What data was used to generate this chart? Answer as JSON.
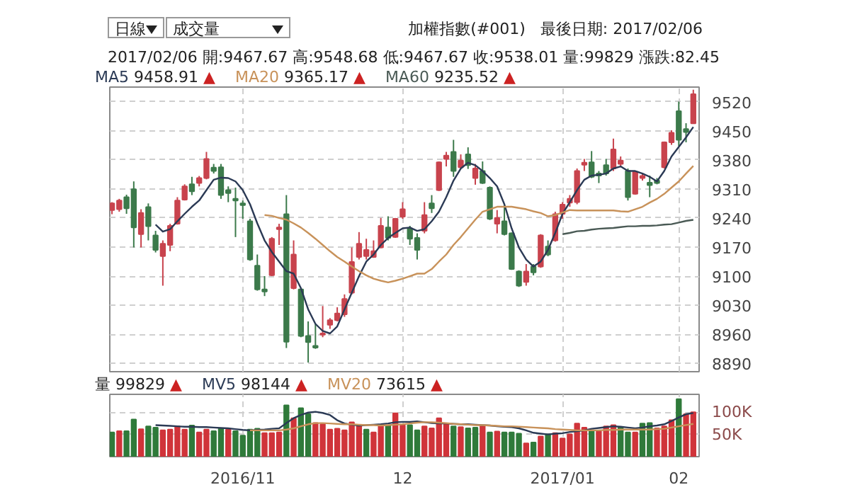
{
  "chart_data": [
    {
      "type": "candlestick",
      "title": "加權指數(#001)   最後日期: 2017/02/06",
      "subtitle": "2017/02/06 開:9467.67 高:9548.68 低:9467.67 收:9538.01 量:99829 漲跌:82.45",
      "annotations": [
        "日線",
        "成交量",
        "▲",
        "9458.91",
        "9365.17",
        "9235.52"
      ],
      "categories": [
        null,
        null,
        null,
        null,
        null,
        null,
        null,
        null,
        null,
        null,
        null,
        null,
        null,
        null,
        null,
        null,
        null,
        null,
        "2016/11",
        null,
        null,
        null,
        null,
        null,
        null,
        null,
        null,
        null,
        null,
        null,
        null,
        null,
        null,
        null,
        null,
        null,
        null,
        null,
        null,
        null,
        "12",
        null,
        null,
        null,
        null,
        null,
        null,
        null,
        null,
        null,
        null,
        null,
        null,
        null,
        null,
        null,
        null,
        null,
        null,
        null,
        null,
        null,
        "2017/01",
        null,
        null,
        null,
        null,
        null,
        null,
        null,
        null,
        null,
        null,
        null,
        null,
        null,
        null,
        null,
        "02",
        null,
        null
      ],
      "ohlc": [
        [
          9259,
          9278,
          9249,
          9275
        ],
        [
          9261,
          9286,
          9255,
          9282
        ],
        [
          9290,
          9296,
          9250,
          9263
        ],
        [
          9309,
          9328,
          9169,
          9217
        ],
        [
          9201,
          9261,
          9169,
          9252
        ],
        [
          9266,
          9275,
          9186,
          9220
        ],
        [
          9198,
          9209,
          9157,
          9163
        ],
        [
          9148,
          9186,
          9077,
          9178
        ],
        [
          9175,
          9226,
          9160,
          9221
        ],
        [
          9226,
          9290,
          9224,
          9282
        ],
        [
          9284,
          9321,
          9282,
          9316
        ],
        [
          9321,
          9339,
          9295,
          9304
        ],
        [
          9324,
          9341,
          9316,
          9336
        ],
        [
          9336,
          9399,
          9333,
          9382
        ],
        [
          9361,
          9370,
          9347,
          9353
        ],
        [
          9362,
          9370,
          9286,
          9295
        ],
        [
          9307,
          9316,
          9278,
          9300
        ],
        [
          9286,
          9313,
          9194,
          9282
        ],
        [
          9275,
          9282,
          9238,
          9271
        ],
        [
          9232,
          9238,
          9137,
          9140
        ],
        [
          9125,
          9152,
          9065,
          9068
        ],
        [
          9068,
          9100,
          9052,
          9063
        ],
        [
          9102,
          9194,
          9100,
          9190
        ],
        [
          9213,
          9226,
          9175,
          9217
        ],
        [
          9249,
          9295,
          8927,
          8942
        ],
        [
          9071,
          9186,
          9068,
          9152
        ],
        [
          9068,
          9068,
          8953,
          8956
        ],
        [
          8956,
          8991,
          8892,
          8941
        ],
        [
          8932,
          8985,
          8925,
          8928
        ],
        [
          8959,
          9028,
          8953,
          8962
        ],
        [
          8983,
          8999,
          8973,
          8994
        ],
        [
          8994,
          9025,
          8991,
          9010
        ],
        [
          9008,
          9056,
          9002,
          9045
        ],
        [
          9060,
          9169,
          9056,
          9134
        ],
        [
          9146,
          9206,
          9140,
          9178
        ],
        [
          9148,
          9190,
          9140,
          9163
        ],
        [
          9146,
          9186,
          9144,
          9160
        ],
        [
          9169,
          9240,
          9167,
          9221
        ],
        [
          9217,
          9244,
          9186,
          9192
        ],
        [
          9194,
          9240,
          9192,
          9238
        ],
        [
          9243,
          9278,
          9238,
          9261
        ],
        [
          9215,
          9221,
          9175,
          9190
        ],
        [
          9192,
          9203,
          9140,
          9163
        ],
        [
          9209,
          9278,
          9203,
          9247
        ],
        [
          9275,
          9295,
          9252,
          9263
        ],
        [
          9307,
          9376,
          9305,
          9374
        ],
        [
          9382,
          9399,
          9364,
          9390
        ],
        [
          9399,
          9428,
          9339,
          9353
        ],
        [
          9362,
          9393,
          9359,
          9378
        ],
        [
          9393,
          9410,
          9358,
          9367
        ],
        [
          9336,
          9370,
          9320,
          9359
        ],
        [
          9353,
          9376,
          9322,
          9324
        ],
        [
          9313,
          9316,
          9235,
          9238
        ],
        [
          9226,
          9259,
          9203,
          9240
        ],
        [
          9232,
          9272,
          9198,
          9201
        ],
        [
          9203,
          9205,
          9115,
          9117
        ],
        [
          9111,
          9114,
          9074,
          9077
        ],
        [
          9086,
          9129,
          9077,
          9111
        ],
        [
          9123,
          9129,
          9102,
          9109
        ],
        [
          9123,
          9201,
          9120,
          9198
        ],
        [
          9171,
          9186,
          9148,
          9152
        ],
        [
          9186,
          9255,
          9183,
          9249
        ],
        [
          9250,
          9278,
          9238,
          9272
        ],
        [
          9277,
          9295,
          9267,
          9286
        ],
        [
          9278,
          9359,
          9273,
          9353
        ],
        [
          9368,
          9382,
          9353,
          9373
        ],
        [
          9374,
          9401,
          9336,
          9339
        ],
        [
          9347,
          9353,
          9324,
          9342
        ],
        [
          9367,
          9382,
          9342,
          9347
        ],
        [
          9359,
          9431,
          9353,
          9405
        ],
        [
          9370,
          9388,
          9362,
          9378
        ],
        [
          9353,
          9359,
          9282,
          9290
        ],
        [
          9298,
          9353,
          9296,
          9351
        ],
        [
          9336,
          9347,
          9330,
          9341
        ],
        [
          9325,
          9342,
          9290,
          9319
        ],
        [
          9330,
          9336,
          9321,
          9324
        ],
        [
          9362,
          9424,
          9359,
          9422
        ],
        [
          9422,
          9451,
          9416,
          9445
        ],
        [
          9497,
          9520,
          9413,
          9428
        ],
        [
          9454,
          9468,
          9422,
          9447
        ],
        [
          9467.67,
          9548.68,
          9467.67,
          9538.01
        ]
      ],
      "colors": [
        "#c8434d",
        "#c8434d",
        "#3c7a4b",
        "#3c7a4b",
        "#c8434d",
        "#3c7a4b",
        "#3c7a4b",
        "#c8434d",
        "#c8434d",
        "#c8434d",
        "#c8434d",
        "#3c7a4b",
        "#c8434d",
        "#c8434d",
        "#3c7a4b",
        "#3c7a4b",
        "#3c7a4b",
        "#3c7a4b",
        "#3c7a4b",
        "#3c7a4b",
        "#3c7a4b",
        "#3c7a4b",
        "#c8434d",
        "#c8434d",
        "#3c7a4b",
        "#c8434d",
        "#3c7a4b",
        "#3c7a4b",
        "#3c7a4b",
        "#c8434d",
        "#c8434d",
        "#c8434d",
        "#c8434d",
        "#c8434d",
        "#c8434d",
        "#c8434d",
        "#c8434d",
        "#c8434d",
        "#3c7a4b",
        "#c8434d",
        "#c8434d",
        "#3c7a4b",
        "#3c7a4b",
        "#c8434d",
        "#3c7a4b",
        "#c8434d",
        "#c8434d",
        "#3c7a4b",
        "#c8434d",
        "#3c7a4b",
        "#c8434d",
        "#3c7a4b",
        "#3c7a4b",
        "#c8434d",
        "#3c7a4b",
        "#3c7a4b",
        "#3c7a4b",
        "#c8434d",
        "#3c7a4b",
        "#c8434d",
        "#3c7a4b",
        "#c8434d",
        "#c8434d",
        "#c8434d",
        "#c8434d",
        "#c8434d",
        "#3c7a4b",
        "#3c7a4b",
        "#3c7a4b",
        "#c8434d",
        "#c8434d",
        "#3c7a4b",
        "#c8434d",
        "#c8434d",
        "#3c7a4b",
        "#3c7a4b",
        "#c8434d",
        "#c8434d",
        "#3c7a4b",
        "#3c7a4b",
        "#c8434d"
      ],
      "series": [
        {
          "name": "MA5",
          "type": "line",
          "color": "#2b3a55",
          "values": [
            null,
            null,
            null,
            null,
            null,
            null,
            9224,
            9207,
            9213,
            9232,
            9250,
            9267,
            9282,
            9307,
            9332,
            9337,
            9336,
            9328,
            9307,
            9273,
            9227,
            9186,
            9158,
            9135,
            9112,
            9106,
            9071,
            9020,
            8985,
            8968,
            8962,
            8979,
            9020,
            9060,
            9100,
            9135,
            9152,
            9175,
            9192,
            9204,
            9215,
            9217,
            9209,
            9213,
            9232,
            9255,
            9290,
            9330,
            9359,
            9373,
            9367,
            9353,
            9336,
            9316,
            9273,
            9215,
            9169,
            9140,
            9123,
            9135,
            9163,
            9204,
            9250,
            9278,
            9307,
            9332,
            9342,
            9344,
            9347,
            9359,
            9364,
            9353,
            9353,
            9347,
            9339,
            9328,
            9353,
            9388,
            9411,
            9434,
            9458.91
          ]
        },
        {
          "name": "MA20",
          "type": "line",
          "color": "#c8925a",
          "values": [
            null,
            null,
            null,
            null,
            null,
            null,
            null,
            null,
            null,
            null,
            null,
            null,
            null,
            null,
            null,
            null,
            null,
            null,
            null,
            null,
            null,
            9247,
            9245,
            9240,
            9236,
            9227,
            9217,
            9204,
            9190,
            9175,
            9160,
            9146,
            9135,
            9123,
            9112,
            9102,
            9094,
            9089,
            9085,
            9089,
            9094,
            9100,
            9106,
            9106,
            9117,
            9135,
            9152,
            9175,
            9194,
            9215,
            9236,
            9255,
            9261,
            9267,
            9267,
            9267,
            9264,
            9261,
            9256,
            9252,
            9244,
            9247,
            9253,
            9259,
            9258,
            9258,
            9258,
            9258,
            9258,
            9258,
            9256,
            9255,
            9261,
            9267,
            9277,
            9286,
            9298,
            9313,
            9328,
            9347,
            9365.17
          ]
        },
        {
          "name": "MA60",
          "type": "line",
          "color": "#4a5a55",
          "values": [
            null,
            null,
            null,
            null,
            null,
            null,
            null,
            null,
            null,
            null,
            null,
            null,
            null,
            null,
            null,
            null,
            null,
            null,
            null,
            null,
            null,
            null,
            null,
            null,
            null,
            null,
            null,
            null,
            null,
            null,
            null,
            null,
            null,
            null,
            null,
            null,
            null,
            null,
            null,
            null,
            null,
            null,
            null,
            null,
            null,
            null,
            null,
            null,
            null,
            null,
            null,
            null,
            null,
            null,
            null,
            null,
            null,
            null,
            null,
            null,
            null,
            null,
            9201,
            9204,
            9208,
            9209,
            9212,
            9214,
            9215,
            9216,
            9218,
            9220,
            9220,
            9221,
            9221,
            9222,
            9224,
            9225,
            9229,
            9233,
            9235.52
          ]
        }
      ],
      "ylim": [
        8870,
        9555
      ],
      "yticks": [
        8890,
        8960,
        9030,
        9100,
        9170,
        9240,
        9310,
        9380,
        9450,
        9520
      ],
      "grid": true,
      "legend": "top left",
      "tick_labels": "y"
    },
    {
      "type": "bar",
      "annotations": [
        "▲",
        "99829",
        "98144",
        "73615"
      ],
      "categories": [
        null,
        null,
        null,
        null,
        null,
        null,
        null,
        null,
        null,
        null,
        null,
        null,
        null,
        null,
        null,
        null,
        null,
        null,
        "2016/11",
        null,
        null,
        null,
        null,
        null,
        null,
        null,
        null,
        null,
        null,
        null,
        null,
        null,
        null,
        null,
        null,
        null,
        null,
        null,
        null,
        null,
        "12",
        null,
        null,
        null,
        null,
        null,
        null,
        null,
        null,
        null,
        null,
        null,
        null,
        null,
        null,
        null,
        null,
        null,
        null,
        null,
        null,
        null,
        "2017/01",
        null,
        null,
        null,
        null,
        null,
        null,
        null,
        null,
        null,
        null,
        null,
        null,
        null,
        null,
        null,
        "02",
        null,
        null
      ],
      "series": [
        {
          "name": "量",
          "type": "bar",
          "values": [
            54500,
            57300,
            57300,
            83600,
            61800,
            68200,
            65400,
            59100,
            60900,
            68200,
            60900,
            70000,
            54500,
            60900,
            57300,
            62700,
            60900,
            57300,
            47300,
            60900,
            62700,
            52700,
            52700,
            54500,
            115400,
            86400,
            109100,
            95400,
            75400,
            72700,
            60900,
            62700,
            59100,
            77300,
            70000,
            60900,
            54500,
            68200,
            70000,
            97300,
            70900,
            70900,
            59100,
            68200,
            63600,
            86400,
            72700,
            68200,
            66400,
            63600,
            65400,
            70000,
            54500,
            56400,
            54500,
            54500,
            51800,
            30000,
            31800,
            45500,
            50000,
            52700,
            40900,
            50000,
            74500,
            65400,
            59100,
            57300,
            68200,
            70900,
            66400,
            54500,
            54500,
            74500,
            75400,
            63600,
            68200,
            81800,
            129100,
            95400,
            99829
          ],
          "colors": [
            "#2f7a3a",
            "#d0343a",
            "#2f7a3a",
            "#2f7a3a",
            "#d0343a",
            "#2f7a3a",
            "#2f7a3a",
            "#d0343a",
            "#d0343a",
            "#d0343a",
            "#d0343a",
            "#2f7a3a",
            "#d0343a",
            "#d0343a",
            "#2f7a3a",
            "#2f7a3a",
            "#d0343a",
            "#2f7a3a",
            "#2f7a3a",
            "#2f7a3a",
            "#2f7a3a",
            "#d0343a",
            "#d0343a",
            "#d0343a",
            "#2f7a3a",
            "#d0343a",
            "#2f7a3a",
            "#2f7a3a",
            "#d0343a",
            "#d0343a",
            "#d0343a",
            "#d0343a",
            "#d0343a",
            "#d0343a",
            "#d0343a",
            "#2f7a3a",
            "#d0343a",
            "#d0343a",
            "#2f7a3a",
            "#d0343a",
            "#d0343a",
            "#2f7a3a",
            "#2f7a3a",
            "#d0343a",
            "#d0343a",
            "#d0343a",
            "#d0343a",
            "#2f7a3a",
            "#d0343a",
            "#2f7a3a",
            "#2f7a3a",
            "#d0343a",
            "#2f7a3a",
            "#d0343a",
            "#2f7a3a",
            "#2f7a3a",
            "#2f7a3a",
            "#d0343a",
            "#2f7a3a",
            "#d0343a",
            "#2f7a3a",
            "#d0343a",
            "#d0343a",
            "#d0343a",
            "#d0343a",
            "#d0343a",
            "#2f7a3a",
            "#d0343a",
            "#d0343a",
            "#d0343a",
            "#2f7a3a",
            "#2f7a3a",
            "#d0343a",
            "#2f7a3a",
            "#2f7a3a",
            "#d0343a",
            "#d0343a",
            "#d0343a",
            "#2f7a3a",
            "#d0343a",
            "#d0343a"
          ]
        },
        {
          "name": "MV5",
          "type": "line",
          "color": "#2b3a55",
          "values": [
            null,
            null,
            null,
            null,
            null,
            null,
            70900,
            70000,
            69100,
            68200,
            67300,
            67300,
            66400,
            66400,
            65400,
            64500,
            63600,
            61800,
            60000,
            59100,
            60000,
            60900,
            62700,
            63600,
            75400,
            86400,
            93600,
            99100,
            100900,
            98200,
            93600,
            81800,
            74500,
            71800,
            70000,
            70900,
            71800,
            72700,
            74500,
            77300,
            78200,
            78200,
            79100,
            77300,
            75400,
            74500,
            74500,
            73600,
            72700,
            72700,
            71800,
            70900,
            70000,
            68200,
            67300,
            66400,
            63600,
            59100,
            53600,
            51800,
            50000,
            51800,
            52700,
            55400,
            57300,
            59100,
            62700,
            64500,
            66400,
            68200,
            67300,
            65400,
            63600,
            65400,
            68200,
            70000,
            72700,
            80000,
            88200,
            95400,
            98144
          ]
        },
        {
          "name": "MV20",
          "type": "line",
          "color": "#c8925a",
          "values": [
            null,
            null,
            null,
            null,
            null,
            null,
            null,
            null,
            null,
            null,
            null,
            null,
            null,
            null,
            null,
            null,
            null,
            null,
            null,
            59100,
            59100,
            59100,
            59100,
            59100,
            60900,
            63600,
            68200,
            72700,
            75400,
            75400,
            74500,
            73600,
            72700,
            72700,
            71800,
            70900,
            70900,
            70000,
            70900,
            71800,
            72700,
            74500,
            76400,
            77300,
            77300,
            76400,
            75400,
            73600,
            72700,
            71800,
            70900,
            70900,
            70000,
            69100,
            68200,
            68200,
            67300,
            66400,
            65400,
            64500,
            63600,
            61800,
            60900,
            60000,
            59100,
            59100,
            59100,
            59100,
            60000,
            60000,
            60900,
            60900,
            60900,
            60900,
            60900,
            61800,
            62700,
            65400,
            68200,
            70900,
            73615
          ]
        }
      ],
      "ylim": [
        0,
        140000
      ],
      "yticks": [
        {
          "value": 50000,
          "label": "50K"
        },
        {
          "value": 100000,
          "label": "100K"
        }
      ],
      "grid": true,
      "legend": "top left"
    }
  ]
}
